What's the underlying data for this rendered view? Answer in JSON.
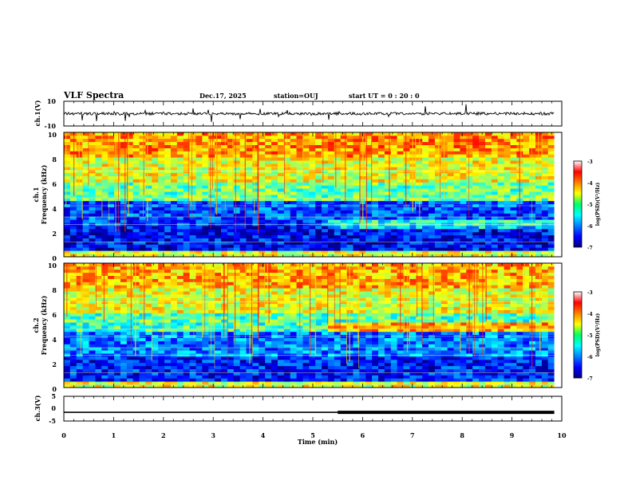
{
  "header": {
    "title": "VLF Spectra",
    "date": "Dec.17, 2025",
    "station": "station=OUJ",
    "start_ut": "start  UT =   0 : 20 : 0"
  },
  "chart_data": [
    {
      "type": "line",
      "name": "ch1-waveform",
      "ylabel": "ch.1(V)",
      "ylim": [
        -10,
        10
      ],
      "yticks": [
        "10",
        "-10"
      ],
      "xlim": [
        0,
        10
      ],
      "trace_end_min": 9.85,
      "series": [
        {
          "name": "ch.1",
          "baseline": 0,
          "color": "#000000"
        }
      ]
    },
    {
      "type": "heatmap",
      "name": "ch1-spectrogram",
      "ylabel": [
        "ch.1",
        "Frequency  (kHz)"
      ],
      "ylim": [
        0,
        10
      ],
      "yticks": [
        "0",
        "2",
        "4",
        "6",
        "8",
        "10"
      ],
      "xlim": [
        0,
        10
      ],
      "data_end_min": 9.85,
      "colorbar": {
        "label": "log(PSD)(V²/Hz)",
        "min": -7,
        "max": -3,
        "ticks": [
          "-3",
          "-4",
          "-5",
          "-6",
          "-7"
        ]
      },
      "approx_log_psd_by_band": [
        {
          "f_khz": [
            0,
            0.5
          ],
          "value": -4.6
        },
        {
          "f_khz": [
            0.5,
            2.5
          ],
          "value": -6.5
        },
        {
          "f_khz": [
            2.5,
            4.5
          ],
          "value": -6.2
        },
        {
          "f_khz": [
            4.5,
            6.0
          ],
          "value": -5.1
        },
        {
          "f_khz": [
            6.0,
            8.0
          ],
          "value": -4.6
        },
        {
          "f_khz": [
            8.0,
            10.0
          ],
          "value": -4.1
        }
      ]
    },
    {
      "type": "heatmap",
      "name": "ch2-spectrogram",
      "ylabel": [
        "ch.2",
        "Frequency  (kHz)"
      ],
      "ylim": [
        0,
        10
      ],
      "yticks": [
        "0",
        "2",
        "4",
        "6",
        "8",
        "10"
      ],
      "xlim": [
        0,
        10
      ],
      "data_end_min": 9.85,
      "colorbar": {
        "label": "log(PSD)(V²/Hz)",
        "min": -7,
        "max": -3,
        "ticks": [
          "-3",
          "-4",
          "-5",
          "-6",
          "-7"
        ]
      },
      "approx_log_psd_by_band": [
        {
          "f_khz": [
            0,
            0.5
          ],
          "value": -4.6
        },
        {
          "f_khz": [
            0.5,
            2.5
          ],
          "value": -6.4
        },
        {
          "f_khz": [
            2.5,
            4.5
          ],
          "value": -6.0
        },
        {
          "f_khz": [
            4.5,
            6.0
          ],
          "value": -5.2
        },
        {
          "f_khz": [
            6.0,
            8.0
          ],
          "value": -4.6
        },
        {
          "f_khz": [
            8.0,
            10.0
          ],
          "value": -4.2
        }
      ]
    },
    {
      "type": "line",
      "name": "ch3-waveform",
      "ylabel": "ch.3(V)",
      "ylim": [
        -5,
        5
      ],
      "yticks": [
        "5",
        "0",
        "-5"
      ],
      "xlim": [
        0,
        10
      ],
      "trace_end_min": 9.85,
      "level_v": -1.5,
      "thick_from_min": 5.5,
      "series": [
        {
          "name": "ch.3",
          "color": "#000000"
        }
      ]
    }
  ],
  "xaxis": {
    "label": "Time  (min)",
    "ticks": [
      "0",
      "1",
      "2",
      "3",
      "4",
      "5",
      "6",
      "7",
      "8",
      "9",
      "10"
    ]
  }
}
